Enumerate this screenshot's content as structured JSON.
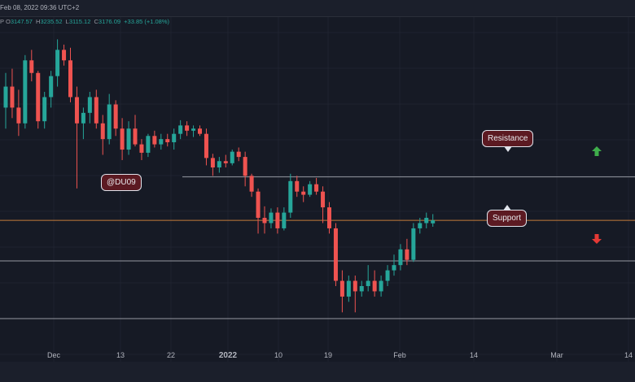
{
  "header": {
    "date_text": "Feb 08, 2022 09:36 UTC+2"
  },
  "ohlc": {
    "prefix": "P",
    "open_label": "O",
    "open": "3147.57",
    "high_label": "H",
    "high": "3235.52",
    "low_label": "L",
    "low": "3115.12",
    "close_label": "C",
    "close": "3176.09",
    "change": "+33.85 (+1.08%)"
  },
  "watermark": "@DU09",
  "annotations": {
    "resistance": "Resistance",
    "support": "Support"
  },
  "colors": {
    "up": "#26a69a",
    "down": "#ef5350",
    "level_line": "#9598a1",
    "price_line": "#c47a3a",
    "arrow_up": "#3fae4b",
    "arrow_down": "#e53935"
  },
  "chart_data": {
    "type": "candlestick",
    "x_ticks": [
      "Dec",
      "13",
      "22",
      "2022",
      "10",
      "19",
      "Feb",
      "14",
      "Mar",
      "14"
    ],
    "levels": {
      "resistance": 3590,
      "support": 2790,
      "lower_support": 2240
    },
    "current_price": 3176.09,
    "ylim": [
      1830,
      5120
    ],
    "candles": [
      [
        4250,
        4580,
        4050,
        4450
      ],
      [
        4450,
        4620,
        4150,
        4250
      ],
      [
        4250,
        4420,
        3980,
        4100
      ],
      [
        4100,
        4750,
        4050,
        4700
      ],
      [
        4700,
        4800,
        4500,
        4580
      ],
      [
        4580,
        4600,
        4050,
        4120
      ],
      [
        4120,
        4400,
        4050,
        4350
      ],
      [
        4350,
        4600,
        4250,
        4550
      ],
      [
        4550,
        4900,
        4450,
        4800
      ],
      [
        4800,
        4850,
        4650,
        4700
      ],
      [
        4700,
        4820,
        4300,
        4350
      ],
      [
        4350,
        4450,
        3480,
        4100
      ],
      [
        4100,
        4250,
        3950,
        4200
      ],
      [
        4200,
        4400,
        4100,
        4350
      ],
      [
        4350,
        4420,
        4050,
        4100
      ],
      [
        4100,
        4180,
        3800,
        3950
      ],
      [
        3950,
        4380,
        3900,
        4280
      ],
      [
        4280,
        4320,
        3980,
        4050
      ],
      [
        4050,
        4150,
        3750,
        3850
      ],
      [
        3850,
        4120,
        3800,
        4050
      ],
      [
        4050,
        4180,
        3880,
        3900
      ],
      [
        3900,
        3950,
        3750,
        3820
      ],
      [
        3820,
        4000,
        3780,
        3980
      ],
      [
        3980,
        4030,
        3870,
        3900
      ],
      [
        3900,
        4000,
        3850,
        3950
      ],
      [
        3950,
        4000,
        3880,
        3920
      ],
      [
        3920,
        4050,
        3850,
        4000
      ],
      [
        4000,
        4130,
        3950,
        4080
      ],
      [
        4080,
        4120,
        3980,
        4030
      ],
      [
        4030,
        4080,
        3970,
        4050
      ],
      [
        4050,
        4080,
        3980,
        4000
      ],
      [
        4000,
        4050,
        3700,
        3770
      ],
      [
        3770,
        3810,
        3600,
        3680
      ],
      [
        3680,
        3780,
        3630,
        3740
      ],
      [
        3740,
        3800,
        3680,
        3720
      ],
      [
        3720,
        3850,
        3700,
        3830
      ],
      [
        3830,
        3870,
        3740,
        3780
      ],
      [
        3780,
        3830,
        3500,
        3600
      ],
      [
        3600,
        3620,
        3400,
        3450
      ],
      [
        3450,
        3480,
        3050,
        3200
      ],
      [
        3200,
        3310,
        3050,
        3150
      ],
      [
        3150,
        3290,
        3100,
        3250
      ],
      [
        3250,
        3300,
        3050,
        3100
      ],
      [
        3100,
        3300,
        3080,
        3250
      ],
      [
        3250,
        3620,
        3200,
        3550
      ],
      [
        3550,
        3600,
        3400,
        3450
      ],
      [
        3450,
        3500,
        3350,
        3420
      ],
      [
        3420,
        3550,
        3400,
        3520
      ],
      [
        3520,
        3580,
        3420,
        3450
      ],
      [
        3450,
        3500,
        3150,
        3300
      ],
      [
        3300,
        3350,
        3050,
        3100
      ],
      [
        3100,
        3150,
        2550,
        2600
      ],
      [
        2600,
        2700,
        2300,
        2450
      ],
      [
        2450,
        2650,
        2400,
        2600
      ],
      [
        2600,
        2650,
        2300,
        2500
      ],
      [
        2500,
        2600,
        2450,
        2550
      ],
      [
        2550,
        2750,
        2500,
        2600
      ],
      [
        2600,
        2700,
        2450,
        2500
      ],
      [
        2500,
        2650,
        2450,
        2600
      ],
      [
        2600,
        2750,
        2550,
        2700
      ],
      [
        2700,
        2850,
        2650,
        2750
      ],
      [
        2750,
        2950,
        2700,
        2900
      ],
      [
        2900,
        3000,
        2750,
        2800
      ],
      [
        2800,
        3150,
        2780,
        3100
      ],
      [
        3100,
        3200,
        3050,
        3150
      ],
      [
        3150,
        3250,
        3100,
        3200
      ],
      [
        3147.57,
        3235.52,
        3115.12,
        3176.09
      ]
    ]
  }
}
